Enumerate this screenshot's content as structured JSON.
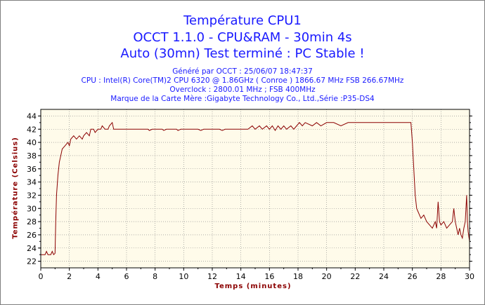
{
  "titles": {
    "line1": "Température CPU1",
    "line2": "OCCT 1.1.0 - CPU&RAM - 30min 4s",
    "line3": "Auto (30mn) Test terminé : PC Stable !"
  },
  "info": {
    "generated": "Généré par OCCT : 25/06/07 18:47:37",
    "cpu": "CPU : Intel(R) Core(TM)2 CPU          6320  @ 1.86GHz ( Conroe ) 1866.67 MHz FSB 266.67MHz",
    "overclock": "Overclock : 2800.01 MHz ; FSB 400MHz",
    "motherboard": "Marque de la Carte Mère :Gigabyte Technology Co., Ltd.,Série :P35-DS4"
  },
  "colors": {
    "text": "#1a1aff",
    "axis_label": "#8b0000",
    "line": "#8b0000",
    "plot_bg": "#fffbea",
    "grid": "#808080"
  },
  "chart_data": {
    "type": "line",
    "xlabel": "Temps (minutes)",
    "ylabel": "Température (Celsius)",
    "xlim": [
      0,
      30
    ],
    "ylim": [
      21,
      45
    ],
    "xticks": [
      0,
      2,
      4,
      6,
      8,
      10,
      12,
      14,
      16,
      18,
      20,
      22,
      24,
      26,
      28,
      30
    ],
    "yticks": [
      22,
      24,
      26,
      28,
      30,
      32,
      34,
      36,
      38,
      40,
      42,
      44
    ],
    "grid": true,
    "series": [
      {
        "values": [
          [
            0.0,
            23
          ],
          [
            0.3,
            23
          ],
          [
            0.4,
            23.5
          ],
          [
            0.5,
            23
          ],
          [
            0.7,
            23
          ],
          [
            0.8,
            23.5
          ],
          [
            0.9,
            23
          ],
          [
            1.0,
            23.2
          ],
          [
            1.05,
            28
          ],
          [
            1.1,
            32
          ],
          [
            1.2,
            35
          ],
          [
            1.3,
            37
          ],
          [
            1.4,
            38
          ],
          [
            1.5,
            39
          ],
          [
            1.7,
            39.5
          ],
          [
            1.9,
            40
          ],
          [
            2.0,
            39.5
          ],
          [
            2.1,
            40.5
          ],
          [
            2.3,
            41
          ],
          [
            2.5,
            40.5
          ],
          [
            2.7,
            41
          ],
          [
            2.9,
            40.5
          ],
          [
            3.0,
            41
          ],
          [
            3.2,
            41.5
          ],
          [
            3.4,
            41
          ],
          [
            3.5,
            42
          ],
          [
            3.7,
            42
          ],
          [
            3.8,
            41.5
          ],
          [
            4.0,
            42
          ],
          [
            4.2,
            42
          ],
          [
            4.3,
            42.5
          ],
          [
            4.5,
            42
          ],
          [
            4.7,
            42
          ],
          [
            4.8,
            42.5
          ],
          [
            5.0,
            43
          ],
          [
            5.1,
            42
          ],
          [
            5.3,
            42
          ],
          [
            6.0,
            42
          ],
          [
            7.0,
            42
          ],
          [
            7.5,
            42
          ],
          [
            7.6,
            41.8
          ],
          [
            7.8,
            42
          ],
          [
            8.5,
            42
          ],
          [
            8.6,
            41.8
          ],
          [
            8.8,
            42
          ],
          [
            9.5,
            42
          ],
          [
            9.6,
            41.8
          ],
          [
            9.8,
            42
          ],
          [
            10.5,
            42
          ],
          [
            11.0,
            42
          ],
          [
            11.2,
            41.8
          ],
          [
            11.4,
            42
          ],
          [
            12.0,
            42
          ],
          [
            12.5,
            42
          ],
          [
            12.7,
            41.8
          ],
          [
            12.9,
            42
          ],
          [
            13.5,
            42
          ],
          [
            14.0,
            42
          ],
          [
            14.5,
            42
          ],
          [
            14.8,
            42.5
          ],
          [
            15.0,
            42
          ],
          [
            15.3,
            42.5
          ],
          [
            15.5,
            42
          ],
          [
            15.8,
            42.5
          ],
          [
            16.0,
            42
          ],
          [
            16.2,
            42.5
          ],
          [
            16.4,
            41.8
          ],
          [
            16.6,
            42.5
          ],
          [
            16.8,
            42
          ],
          [
            17.0,
            42.5
          ],
          [
            17.2,
            42
          ],
          [
            17.5,
            42.5
          ],
          [
            17.7,
            42
          ],
          [
            17.9,
            42.5
          ],
          [
            18.1,
            43
          ],
          [
            18.3,
            42.5
          ],
          [
            18.5,
            43
          ],
          [
            19.0,
            42.5
          ],
          [
            19.3,
            43
          ],
          [
            19.6,
            42.5
          ],
          [
            20.0,
            43
          ],
          [
            20.5,
            43
          ],
          [
            21.0,
            42.5
          ],
          [
            21.5,
            43
          ],
          [
            22.0,
            43
          ],
          [
            22.5,
            43
          ],
          [
            23.0,
            43
          ],
          [
            23.5,
            43
          ],
          [
            24.0,
            43
          ],
          [
            24.5,
            43
          ],
          [
            25.0,
            43
          ],
          [
            25.5,
            43
          ],
          [
            25.9,
            43
          ],
          [
            26.0,
            40
          ],
          [
            26.1,
            36
          ],
          [
            26.2,
            32
          ],
          [
            26.3,
            30
          ],
          [
            26.4,
            29.5
          ],
          [
            26.5,
            29
          ],
          [
            26.6,
            28.5
          ],
          [
            26.8,
            29
          ],
          [
            27.0,
            28
          ],
          [
            27.2,
            27.5
          ],
          [
            27.4,
            27
          ],
          [
            27.6,
            28
          ],
          [
            27.7,
            27
          ],
          [
            27.8,
            31
          ],
          [
            27.9,
            28
          ],
          [
            28.0,
            27.5
          ],
          [
            28.2,
            28
          ],
          [
            28.4,
            27
          ],
          [
            28.6,
            27.5
          ],
          [
            28.8,
            28
          ],
          [
            28.9,
            30
          ],
          [
            29.0,
            28
          ],
          [
            29.1,
            27
          ],
          [
            29.2,
            26
          ],
          [
            29.3,
            27
          ],
          [
            29.4,
            26
          ],
          [
            29.5,
            25.5
          ],
          [
            29.6,
            27
          ],
          [
            29.7,
            28
          ],
          [
            29.8,
            32
          ],
          [
            29.85,
            28
          ],
          [
            29.9,
            26.5
          ],
          [
            30.0,
            25
          ]
        ]
      }
    ]
  }
}
